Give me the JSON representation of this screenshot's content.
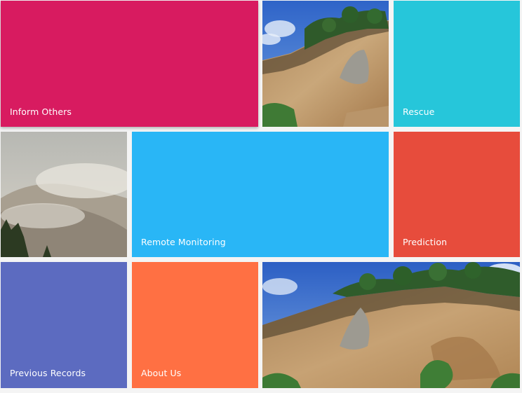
{
  "tiles": {
    "inform_others": {
      "label": "Inform Others",
      "color": "#D81B60"
    },
    "rescue": {
      "label": "Rescue",
      "color": "#26C6DA"
    },
    "remote_monitoring": {
      "label": "Remote Monitoring",
      "color": "#29B6F6"
    },
    "prediction": {
      "label": "Prediction",
      "color": "#E74C3C"
    },
    "previous_records": {
      "label": "Previous Records",
      "color": "#5C6BC0"
    },
    "about_us": {
      "label": "About Us",
      "color": "#FF7043"
    }
  },
  "images": {
    "landslide_1": {
      "icon": "landslide-photo"
    },
    "fog_hills": {
      "icon": "foggy-hills-photo"
    },
    "landslide_2": {
      "icon": "landslide-photo"
    }
  }
}
